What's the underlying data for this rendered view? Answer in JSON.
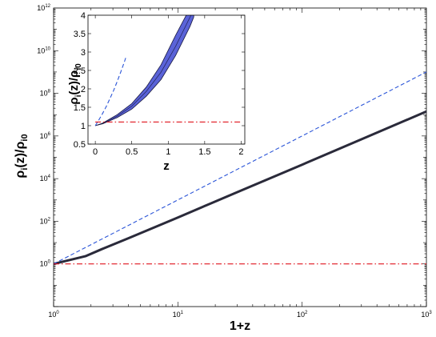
{
  "chart_data": [
    {
      "type": "line",
      "panel": "main",
      "xlabel": "1+z",
      "ylabel": {
        "base": "ρ",
        "sub1": "i",
        "mid": "(z)/ρ",
        "sub2": "i0"
      },
      "xscale": "log",
      "yscale": "log",
      "xlim": [
        1,
        1000
      ],
      "ylim": [
        0.01,
        1000000000000
      ],
      "x_ticks": [
        {
          "base": "10",
          "exp": "0",
          "value": 1
        },
        {
          "base": "10",
          "exp": "1",
          "value": 10
        },
        {
          "base": "10",
          "exp": "2",
          "value": 100
        },
        {
          "base": "10",
          "exp": "3",
          "value": 1000
        }
      ],
      "y_ticks": [
        {
          "base": "10",
          "exp": "0",
          "value": 1
        },
        {
          "base": "10",
          "exp": "2",
          "value": 100
        },
        {
          "base": "10",
          "exp": "4",
          "value": 10000
        },
        {
          "base": "10",
          "exp": "6",
          "value": 1000000
        },
        {
          "base": "10",
          "exp": "8",
          "value": 100000000
        },
        {
          "base": "10",
          "exp": "10",
          "value": 10000000000
        },
        {
          "base": "10",
          "exp": "12",
          "value": 1000000000000
        }
      ],
      "series": [
        {
          "style": "solid-thick",
          "color": "#2a2a3a",
          "x": [
            1,
            1.8,
            2.5,
            4,
            10,
            30,
            100,
            300,
            1000
          ],
          "y": [
            1,
            2.3,
            5.2,
            16,
            150,
            2300,
            45000,
            700000,
            14000000
          ]
        },
        {
          "style": "dashed",
          "color": "#2b55d8",
          "x": [
            1,
            1000
          ],
          "y": [
            1,
            1000000000
          ]
        },
        {
          "style": "dashdot",
          "color": "#e0141e",
          "x": [
            1,
            1000
          ],
          "y": [
            1,
            1
          ]
        }
      ]
    },
    {
      "type": "area",
      "panel": "inset",
      "xlabel": "z",
      "ylabel": {
        "base": "ρ",
        "sub1": "i",
        "mid": "(z)/ρ",
        "sub2": "i0"
      },
      "xlim": [
        -0.1,
        2.05
      ],
      "ylim": [
        0.5,
        4
      ],
      "x_ticks": [
        "0",
        "0.5",
        "1",
        "1.5",
        "2"
      ],
      "y_ticks": [
        "0.5",
        "1",
        "1.5",
        "2",
        "2.5",
        "3",
        "3.5",
        "4"
      ],
      "band": {
        "fill": "#5a63d8",
        "x": [
          0,
          0.1,
          0.3,
          0.5,
          0.7,
          0.9,
          1.1,
          1.3,
          1.35
        ],
        "lower": [
          1,
          1.05,
          1.22,
          1.45,
          1.8,
          2.25,
          2.9,
          3.7,
          3.95
        ],
        "upper": [
          1,
          1.07,
          1.3,
          1.6,
          2.05,
          2.65,
          3.45,
          4.2,
          4.4
        ],
        "center": [
          1,
          1.06,
          1.26,
          1.53,
          1.93,
          2.45,
          3.15,
          3.95,
          4.15
        ]
      },
      "series": [
        {
          "style": "dashed",
          "color": "#2b55d8",
          "x": [
            0,
            0.05,
            0.1,
            0.15,
            0.2,
            0.25,
            0.3,
            0.35,
            0.4,
            0.42
          ],
          "y": [
            1,
            1.16,
            1.33,
            1.52,
            1.73,
            1.95,
            2.2,
            2.46,
            2.74,
            2.86
          ]
        },
        {
          "style": "dashdot",
          "color": "#e0141e",
          "x": [
            0,
            2
          ],
          "y": [
            1.1,
            1.1
          ]
        }
      ]
    }
  ]
}
